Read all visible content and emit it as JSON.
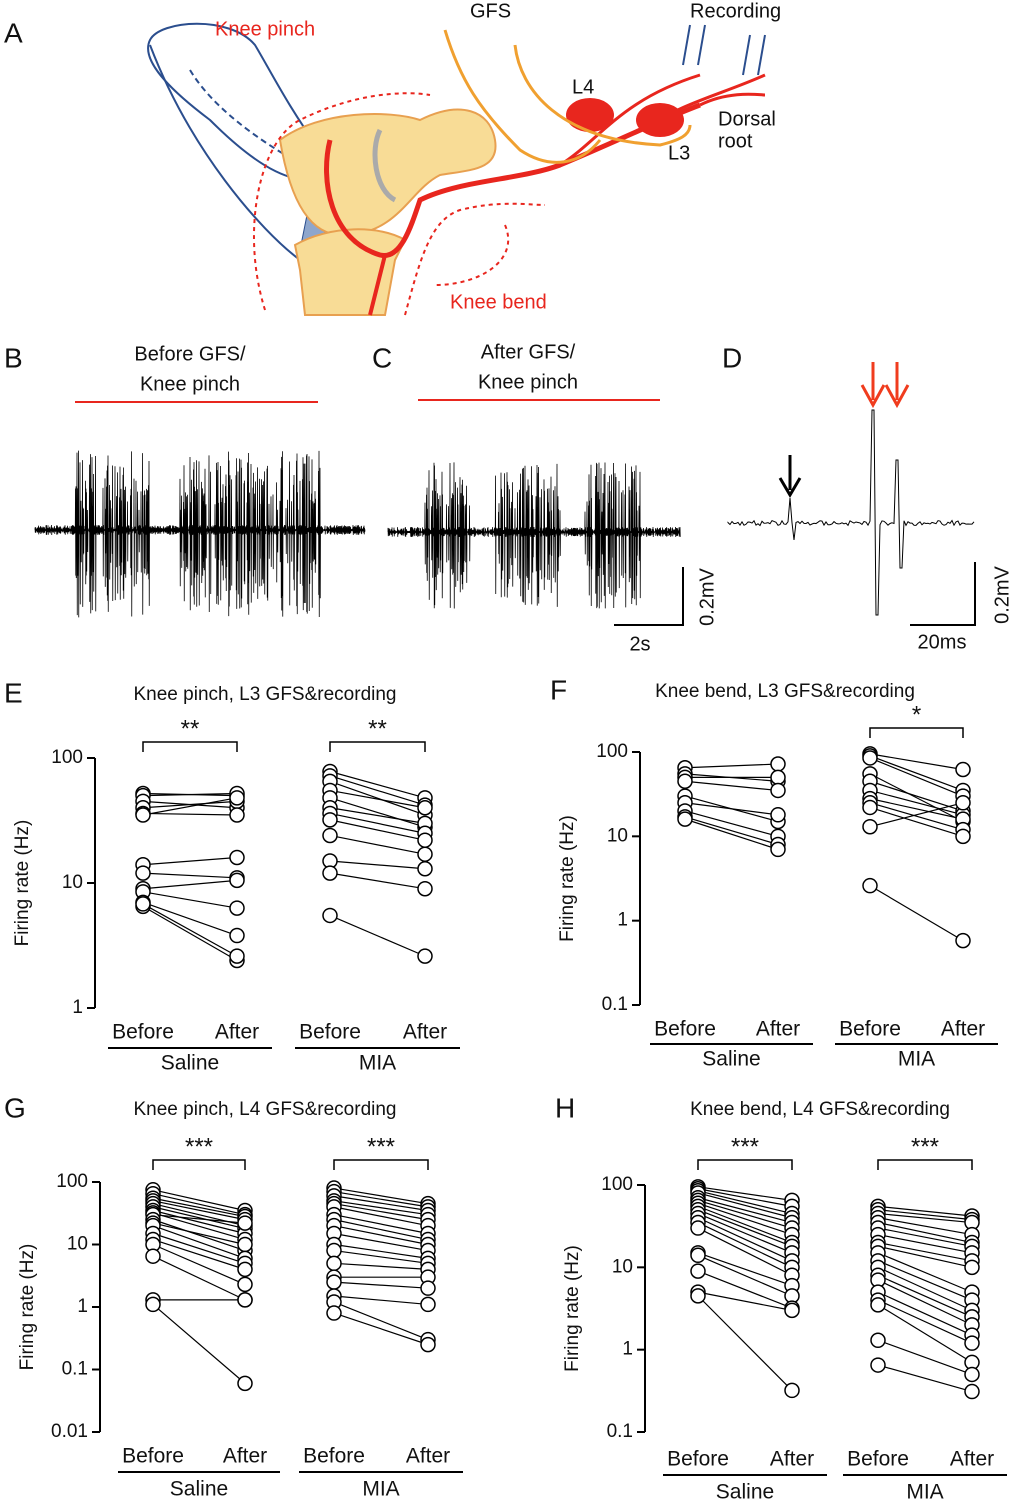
{
  "panel_labels": [
    "A",
    "B",
    "C",
    "D"
  ],
  "diagram": {
    "knee_pinch": "Knee pinch",
    "gfs": "GFS",
    "recording": "Recording",
    "l4": "L4",
    "l3": "L3",
    "dorsal_root": [
      "Dorsal",
      "root"
    ],
    "knee_bend": "Knee bend"
  },
  "traces": [
    {
      "title": [
        "Before GFS/",
        "Knee pinch"
      ]
    },
    {
      "title": [
        "After GFS/",
        "Knee pinch"
      ],
      "scale_y": "0.2mV",
      "scale_x": "2s"
    },
    {
      "scale_y": "0.2mV",
      "scale_x": "20ms"
    }
  ],
  "chart_data": [
    {
      "type": "paired",
      "panel": "E",
      "title": "Knee pinch, L3 GFS&recording",
      "y_label": "Firing rate (Hz)",
      "log_scale": true,
      "ylim": [
        1,
        100
      ],
      "yticks": [
        1,
        10,
        100
      ],
      "x_labels": [
        "Before",
        "After",
        "Before",
        "After"
      ],
      "groups": [
        {
          "name": "Saline",
          "significance": "**",
          "before": [
            52,
            50,
            45,
            40,
            36,
            35,
            14,
            12,
            9,
            8.5,
            7,
            6.5,
            6.8
          ],
          "after": [
            50,
            52,
            40,
            45,
            35,
            48,
            16,
            11,
            10.5,
            6.3,
            3.8,
            2.4,
            2.6
          ]
        },
        {
          "name": "MIA",
          "significance": "**",
          "before": [
            78,
            72,
            65,
            55,
            48,
            40,
            36,
            32,
            24,
            15,
            12,
            5.5
          ],
          "after": [
            48,
            42,
            35,
            40,
            28,
            30,
            25,
            22,
            17,
            13,
            9,
            2.6
          ]
        }
      ]
    },
    {
      "type": "paired",
      "panel": "F",
      "title": "Knee bend, L3 GFS&recording",
      "y_label": "Firing rate (Hz)",
      "log_scale": true,
      "ylim": [
        0.1,
        100
      ],
      "yticks": [
        0.1,
        1,
        10,
        100
      ],
      "x_labels": [
        "Before",
        "After",
        "Before",
        "After"
      ],
      "groups": [
        {
          "name": "Saline",
          "before": [
            65,
            55,
            50,
            45,
            30,
            25,
            20,
            17,
            16
          ],
          "after": [
            72,
            45,
            50,
            35,
            15,
            18,
            10,
            8,
            7
          ]
        },
        {
          "name": "MIA",
          "significance": "*",
          "before": [
            95,
            90,
            85,
            55,
            45,
            35,
            28,
            25,
            22,
            13,
            2.6
          ],
          "after": [
            62,
            35,
            30,
            15,
            20,
            18,
            16,
            12,
            10,
            25,
            0.58
          ]
        }
      ]
    },
    {
      "type": "paired",
      "panel": "G",
      "title": "Knee pinch, L4 GFS&recording",
      "y_label": "Firing rate (Hz)",
      "log_scale": true,
      "ylim": [
        0.01,
        100
      ],
      "yticks": [
        0.01,
        0.1,
        1,
        10,
        100
      ],
      "x_labels": [
        "Before",
        "After",
        "Before",
        "After"
      ],
      "groups": [
        {
          "name": "Saline",
          "significance": "***",
          "before": [
            75,
            65,
            55,
            50,
            45,
            40,
            35,
            32,
            30,
            25,
            22,
            20,
            15,
            12,
            10,
            6.5,
            1.3,
            1.1
          ],
          "after": [
            35,
            30,
            28,
            25,
            20,
            18,
            15,
            12,
            22,
            8,
            10,
            6,
            5,
            4,
            2.3,
            1.3,
            1.3,
            0.06
          ]
        },
        {
          "name": "MIA",
          "significance": "***",
          "before": [
            80,
            70,
            60,
            50,
            45,
            40,
            30,
            25,
            20,
            15,
            10,
            8,
            5,
            3,
            2.5,
            1.5,
            1.2,
            0.8
          ],
          "after": [
            45,
            40,
            35,
            30,
            25,
            20,
            15,
            12,
            10,
            8,
            6,
            5,
            4,
            3,
            2,
            1.1,
            0.3,
            0.25
          ]
        }
      ]
    },
    {
      "type": "paired",
      "panel": "H",
      "title": "Knee bend, L4 GFS&recording",
      "y_label": "Firing rate (Hz)",
      "log_scale": true,
      "ylim": [
        0.1,
        100
      ],
      "yticks": [
        0.1,
        1,
        10,
        100
      ],
      "x_labels": [
        "Before",
        "After",
        "Before",
        "After"
      ],
      "groups": [
        {
          "name": "Saline",
          "significance": "***",
          "before": [
            95,
            90,
            85,
            80,
            70,
            65,
            60,
            55,
            50,
            45,
            40,
            35,
            30,
            15,
            14,
            9,
            5,
            4.5
          ],
          "after": [
            65,
            55,
            45,
            40,
            35,
            30,
            25,
            20,
            18,
            15,
            12,
            10,
            8,
            6,
            4.5,
            3.2,
            3,
            0.32
          ]
        },
        {
          "name": "MIA",
          "significance": "***",
          "before": [
            55,
            50,
            45,
            40,
            35,
            30,
            25,
            20,
            18,
            15,
            12,
            10,
            8,
            7,
            5,
            4,
            3.5,
            1.3,
            0.65
          ],
          "after": [
            42,
            38,
            35,
            25,
            20,
            18,
            15,
            12,
            10,
            5,
            4,
            3,
            2.5,
            2,
            1.5,
            1.2,
            0.7,
            0.5,
            0.31
          ]
        }
      ]
    }
  ]
}
